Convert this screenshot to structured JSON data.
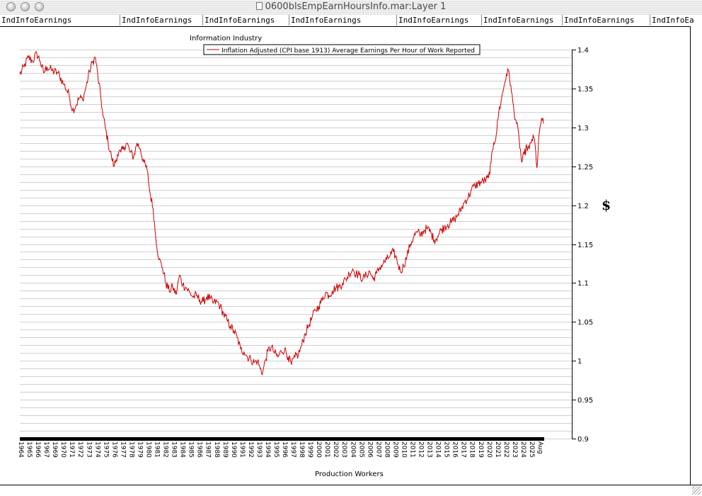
{
  "window": {
    "title": "0600blsEmpEarnHoursInfo.mar:Layer 1"
  },
  "tabs": [
    "IndInfoEarnings",
    "IndInfoEarnings",
    "IndInfoEarnings",
    "IndInfoEarnings",
    "IndInfoEarnings",
    "IndInfoEarnings",
    "IndInfoEarnings",
    "IndInfoEa"
  ],
  "chart_data": {
    "type": "line",
    "title": "Information Industry",
    "xlabel": "Production Workers",
    "ylabel": "$",
    "ylim": [
      0.9,
      1.4
    ],
    "yticks": [
      "1.4",
      "1.35",
      "1.3",
      "1.25",
      "1.2",
      "1.15",
      "1.1",
      "1.05",
      "1",
      "0.95",
      "0.9"
    ],
    "xlim": [
      1964,
      2025.67
    ],
    "xtick_labels": [
      "1964",
      "1965",
      "1966",
      "1967",
      "1969",
      "1970",
      "1971",
      "1972",
      "1973",
      "1974",
      "1975",
      "1976",
      "1977",
      "1978",
      "1979",
      "1980",
      "1981",
      "1982",
      "1983",
      "1984",
      "1985",
      "1986",
      "1987",
      "1988",
      "1989",
      "1990",
      "1991",
      "1992",
      "1993",
      "1994",
      "1995",
      "1996",
      "1997",
      "1998",
      "1999",
      "2000",
      "2001",
      "2002",
      "2003",
      "2004",
      "2005",
      "2006",
      "2007",
      "2008",
      "2009",
      "2010",
      "2011",
      "2012",
      "2013",
      "2014",
      "2015",
      "2016",
      "2017",
      "2018",
      "2019",
      "2020",
      "2021",
      "2022",
      "2023",
      "2024",
      "2025",
      "Aug"
    ],
    "grid": true,
    "legend": "top",
    "series": [
      {
        "name": "Inflation Adjusted (CPI base 1913) Average Earnings Per Hour of Work Reported",
        "color": "#cc0000",
        "points": [
          [
            1964.0,
            1.368
          ],
          [
            1964.5,
            1.378
          ],
          [
            1965.0,
            1.39
          ],
          [
            1965.5,
            1.385
          ],
          [
            1966.0,
            1.395
          ],
          [
            1966.4,
            1.385
          ],
          [
            1966.8,
            1.37
          ],
          [
            1967.2,
            1.378
          ],
          [
            1967.8,
            1.373
          ],
          [
            1968.5,
            1.37
          ],
          [
            1969.2,
            1.355
          ],
          [
            1969.8,
            1.342
          ],
          [
            1970.2,
            1.322
          ],
          [
            1970.6,
            1.328
          ],
          [
            1971.0,
            1.338
          ],
          [
            1971.4,
            1.336
          ],
          [
            1971.8,
            1.352
          ],
          [
            1972.2,
            1.372
          ],
          [
            1972.6,
            1.385
          ],
          [
            1972.9,
            1.39
          ],
          [
            1973.2,
            1.365
          ],
          [
            1973.5,
            1.342
          ],
          [
            1973.8,
            1.315
          ],
          [
            1974.1,
            1.298
          ],
          [
            1974.4,
            1.28
          ],
          [
            1974.8,
            1.262
          ],
          [
            1975.1,
            1.25
          ],
          [
            1975.5,
            1.265
          ],
          [
            1975.9,
            1.268
          ],
          [
            1976.3,
            1.275
          ],
          [
            1976.6,
            1.28
          ],
          [
            1977.0,
            1.268
          ],
          [
            1977.4,
            1.262
          ],
          [
            1977.8,
            1.28
          ],
          [
            1978.2,
            1.272
          ],
          [
            1978.6,
            1.255
          ],
          [
            1979.0,
            1.245
          ],
          [
            1979.3,
            1.218
          ],
          [
            1979.7,
            1.195
          ],
          [
            1980.0,
            1.16
          ],
          [
            1980.4,
            1.13
          ],
          [
            1980.8,
            1.12
          ],
          [
            1981.2,
            1.1
          ],
          [
            1981.6,
            1.09
          ],
          [
            1982.0,
            1.095
          ],
          [
            1982.4,
            1.085
          ],
          [
            1982.8,
            1.11
          ],
          [
            1983.2,
            1.098
          ],
          [
            1983.6,
            1.094
          ],
          [
            1984.0,
            1.088
          ],
          [
            1984.4,
            1.082
          ],
          [
            1984.8,
            1.084
          ],
          [
            1985.2,
            1.078
          ],
          [
            1985.6,
            1.076
          ],
          [
            1986.0,
            1.082
          ],
          [
            1986.4,
            1.08
          ],
          [
            1986.8,
            1.074
          ],
          [
            1987.2,
            1.076
          ],
          [
            1987.6,
            1.07
          ],
          [
            1988.0,
            1.06
          ],
          [
            1988.4,
            1.052
          ],
          [
            1988.8,
            1.045
          ],
          [
            1989.2,
            1.038
          ],
          [
            1989.6,
            1.03
          ],
          [
            1990.0,
            1.015
          ],
          [
            1990.4,
            1.012
          ],
          [
            1990.8,
            1.005
          ],
          [
            1991.2,
            1.002
          ],
          [
            1991.6,
            0.998
          ],
          [
            1992.0,
            1.0
          ],
          [
            1992.3,
            0.99
          ],
          [
            1992.6,
            0.985
          ],
          [
            1992.9,
            1.0
          ],
          [
            1993.2,
            1.012
          ],
          [
            1993.6,
            1.018
          ],
          [
            1994.0,
            1.01
          ],
          [
            1994.4,
            1.005
          ],
          [
            1994.8,
            1.012
          ],
          [
            1995.2,
            1.015
          ],
          [
            1995.6,
            1.005
          ],
          [
            1996.0,
            0.995
          ],
          [
            1996.4,
            1.005
          ],
          [
            1996.8,
            1.008
          ],
          [
            1997.2,
            1.02
          ],
          [
            1997.6,
            1.035
          ],
          [
            1998.0,
            1.045
          ],
          [
            1998.4,
            1.055
          ],
          [
            1998.8,
            1.065
          ],
          [
            1999.2,
            1.07
          ],
          [
            1999.6,
            1.078
          ],
          [
            2000.0,
            1.088
          ],
          [
            2000.4,
            1.084
          ],
          [
            2000.8,
            1.09
          ],
          [
            2001.2,
            1.094
          ],
          [
            2001.6,
            1.095
          ],
          [
            2002.0,
            1.1
          ],
          [
            2002.4,
            1.105
          ],
          [
            2002.8,
            1.112
          ],
          [
            2003.2,
            1.118
          ],
          [
            2003.6,
            1.112
          ],
          [
            2004.0,
            1.11
          ],
          [
            2004.4,
            1.105
          ],
          [
            2004.8,
            1.11
          ],
          [
            2005.2,
            1.115
          ],
          [
            2005.6,
            1.105
          ],
          [
            2006.0,
            1.112
          ],
          [
            2006.4,
            1.12
          ],
          [
            2006.8,
            1.125
          ],
          [
            2007.2,
            1.13
          ],
          [
            2007.6,
            1.135
          ],
          [
            2008.0,
            1.14
          ],
          [
            2008.4,
            1.13
          ],
          [
            2008.8,
            1.115
          ],
          [
            2009.2,
            1.122
          ],
          [
            2009.6,
            1.135
          ],
          [
            2010.0,
            1.15
          ],
          [
            2010.4,
            1.16
          ],
          [
            2010.8,
            1.165
          ],
          [
            2011.2,
            1.162
          ],
          [
            2011.6,
            1.168
          ],
          [
            2012.0,
            1.17
          ],
          [
            2012.4,
            1.165
          ],
          [
            2012.8,
            1.155
          ],
          [
            2013.2,
            1.16
          ],
          [
            2013.6,
            1.168
          ],
          [
            2014.0,
            1.172
          ],
          [
            2014.4,
            1.175
          ],
          [
            2014.8,
            1.178
          ],
          [
            2015.2,
            1.182
          ],
          [
            2015.6,
            1.188
          ],
          [
            2016.0,
            1.195
          ],
          [
            2016.4,
            1.205
          ],
          [
            2016.8,
            1.21
          ],
          [
            2017.2,
            1.22
          ],
          [
            2017.6,
            1.225
          ],
          [
            2018.0,
            1.228
          ],
          [
            2018.4,
            1.23
          ],
          [
            2018.8,
            1.232
          ],
          [
            2019.2,
            1.235
          ],
          [
            2019.5,
            1.255
          ],
          [
            2019.8,
            1.28
          ],
          [
            2020.1,
            1.29
          ],
          [
            2020.4,
            1.32
          ],
          [
            2020.7,
            1.335
          ],
          [
            2021.0,
            1.352
          ],
          [
            2021.3,
            1.368
          ],
          [
            2021.6,
            1.372
          ],
          [
            2021.9,
            1.345
          ],
          [
            2022.2,
            1.32
          ],
          [
            2022.5,
            1.305
          ],
          [
            2022.8,
            1.285
          ],
          [
            2023.1,
            1.255
          ],
          [
            2023.4,
            1.265
          ],
          [
            2023.7,
            1.275
          ],
          [
            2024.0,
            1.272
          ],
          [
            2024.3,
            1.285
          ],
          [
            2024.6,
            1.285
          ],
          [
            2024.9,
            1.248
          ],
          [
            2025.2,
            1.295
          ],
          [
            2025.45,
            1.312
          ],
          [
            2025.67,
            1.305
          ]
        ]
      }
    ]
  }
}
